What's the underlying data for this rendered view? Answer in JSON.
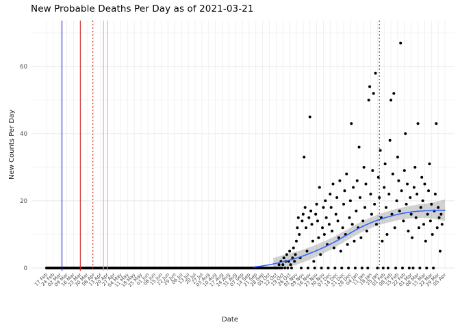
{
  "chart_data": {
    "type": "scatter",
    "title": "New Probable Deaths Per Day as of 2021-03-21",
    "xlabel": "Date",
    "ylabel": "New Counts Per Day",
    "ylim": [
      0,
      70
    ],
    "grid": true,
    "legend": "none",
    "colors": {
      "point": "#000000",
      "smooth_line": "#3366FF",
      "ribbon": "rgba(125,125,125,0.35)",
      "grid_major": "#e4e4e4",
      "grid_minor": "#f2f2f2",
      "axis_text": "#4d4d4d"
    },
    "y_major_ticks": [
      0,
      20,
      40,
      60
    ],
    "y_minor_ticks": [
      10,
      30,
      50,
      70
    ],
    "x_tick_interval_days": 7,
    "x_tick_labels": [
      "17 Feb",
      "24 Feb",
      "02 Mar",
      "09 Mar",
      "16 Mar",
      "23 Mar",
      "30 Mar",
      "06 Apr",
      "13 Apr",
      "20 Apr",
      "27 Apr",
      "04 May",
      "11 May",
      "18 May",
      "25 May",
      "01 Jun",
      "08 Jun",
      "15 Jun",
      "22 Jun",
      "29 Jun",
      "06 Jul",
      "13 Jul",
      "20 Jul",
      "27 Jul",
      "03 Aug",
      "10 Aug",
      "17 Aug",
      "24 Aug",
      "31 Aug",
      "07 Sep",
      "14 Sep",
      "21 Sep",
      "28 Sep",
      "05 Oct",
      "12 Oct",
      "19 Oct",
      "26 Oct",
      "02 Nov",
      "09 Nov",
      "16 Nov",
      "23 Nov",
      "30 Nov",
      "07 Dec",
      "14 Dec",
      "21 Dec",
      "28 Dec",
      "04 Jan",
      "11 Jan",
      "18 Jan",
      "25 Jan",
      "01 Feb",
      "08 Feb",
      "15 Feb",
      "22 Feb",
      "01 Mar",
      "08 Mar",
      "15 Mar",
      "22 Mar",
      "29 Mar",
      "05 Apr"
    ],
    "zero_run_days": [
      0,
      240
    ],
    "points": [
      [
        241,
        1
      ],
      [
        242,
        0
      ],
      [
        243,
        2
      ],
      [
        244,
        0
      ],
      [
        245,
        1
      ],
      [
        246,
        3
      ],
      [
        247,
        0
      ],
      [
        248,
        2
      ],
      [
        249,
        4
      ],
      [
        250,
        0
      ],
      [
        251,
        2
      ],
      [
        252,
        5
      ],
      [
        253,
        1
      ],
      [
        254,
        0
      ],
      [
        255,
        3
      ],
      [
        256,
        6
      ],
      [
        257,
        2
      ],
      [
        258,
        4
      ],
      [
        259,
        8
      ],
      [
        260,
        12
      ],
      [
        261,
        15
      ],
      [
        262,
        10
      ],
      [
        263,
        3
      ],
      [
        264,
        0
      ],
      [
        265,
        14
      ],
      [
        266,
        16
      ],
      [
        267,
        33
      ],
      [
        268,
        18
      ],
      [
        269,
        12
      ],
      [
        270,
        5
      ],
      [
        271,
        0
      ],
      [
        272,
        15
      ],
      [
        273,
        45
      ],
      [
        274,
        17
      ],
      [
        275,
        13
      ],
      [
        276,
        8
      ],
      [
        277,
        2
      ],
      [
        278,
        0
      ],
      [
        279,
        16
      ],
      [
        280,
        19
      ],
      [
        281,
        14
      ],
      [
        282,
        9
      ],
      [
        283,
        24
      ],
      [
        284,
        4
      ],
      [
        285,
        0
      ],
      [
        286,
        12
      ],
      [
        287,
        18
      ],
      [
        288,
        10
      ],
      [
        289,
        20
      ],
      [
        290,
        15
      ],
      [
        291,
        7
      ],
      [
        292,
        0
      ],
      [
        293,
        13
      ],
      [
        294,
        22
      ],
      [
        295,
        18
      ],
      [
        296,
        11
      ],
      [
        297,
        25
      ],
      [
        298,
        6
      ],
      [
        299,
        0
      ],
      [
        300,
        16
      ],
      [
        301,
        21
      ],
      [
        302,
        14
      ],
      [
        303,
        9
      ],
      [
        304,
        26
      ],
      [
        305,
        5
      ],
      [
        306,
        0
      ],
      [
        307,
        12
      ],
      [
        308,
        19
      ],
      [
        309,
        23
      ],
      [
        310,
        10
      ],
      [
        311,
        28
      ],
      [
        312,
        7
      ],
      [
        313,
        0
      ],
      [
        314,
        15
      ],
      [
        315,
        20
      ],
      [
        316,
        43
      ],
      [
        317,
        13
      ],
      [
        318,
        24
      ],
      [
        319,
        8
      ],
      [
        320,
        0
      ],
      [
        321,
        17
      ],
      [
        322,
        26
      ],
      [
        323,
        12
      ],
      [
        324,
        36
      ],
      [
        325,
        21
      ],
      [
        326,
        9
      ],
      [
        327,
        0
      ],
      [
        328,
        14
      ],
      [
        329,
        30
      ],
      [
        330,
        18
      ],
      [
        331,
        25
      ],
      [
        332,
        11
      ],
      [
        333,
        0
      ],
      [
        334,
        50
      ],
      [
        335,
        54
      ],
      [
        336,
        22
      ],
      [
        337,
        16
      ],
      [
        338,
        29
      ],
      [
        339,
        52
      ],
      [
        340,
        19
      ],
      [
        341,
        58
      ],
      [
        342,
        13
      ],
      [
        343,
        0
      ],
      [
        344,
        27
      ],
      [
        345,
        21
      ],
      [
        346,
        35
      ],
      [
        347,
        15
      ],
      [
        348,
        8
      ],
      [
        349,
        0
      ],
      [
        350,
        24
      ],
      [
        351,
        31
      ],
      [
        352,
        18
      ],
      [
        353,
        10
      ],
      [
        354,
        0
      ],
      [
        355,
        22
      ],
      [
        356,
        38
      ],
      [
        357,
        50
      ],
      [
        358,
        16
      ],
      [
        359,
        28
      ],
      [
        360,
        52
      ],
      [
        361,
        12
      ],
      [
        362,
        0
      ],
      [
        363,
        20
      ],
      [
        364,
        33
      ],
      [
        365,
        26
      ],
      [
        366,
        17
      ],
      [
        367,
        67
      ],
      [
        368,
        23
      ],
      [
        369,
        0
      ],
      [
        370,
        14
      ],
      [
        371,
        29
      ],
      [
        372,
        40
      ],
      [
        373,
        19
      ],
      [
        374,
        25
      ],
      [
        375,
        11
      ],
      [
        376,
        0
      ],
      [
        377,
        21
      ],
      [
        378,
        16
      ],
      [
        379,
        9
      ],
      [
        380,
        0
      ],
      [
        381,
        24
      ],
      [
        382,
        30
      ],
      [
        383,
        15
      ],
      [
        384,
        22
      ],
      [
        385,
        43
      ],
      [
        386,
        12
      ],
      [
        387,
        0
      ],
      [
        388,
        18
      ],
      [
        389,
        27
      ],
      [
        390,
        20
      ],
      [
        391,
        13
      ],
      [
        392,
        25
      ],
      [
        393,
        8
      ],
      [
        394,
        0
      ],
      [
        395,
        16
      ],
      [
        396,
        23
      ],
      [
        397,
        31
      ],
      [
        398,
        14
      ],
      [
        399,
        19
      ],
      [
        400,
        10
      ],
      [
        401,
        0
      ],
      [
        402,
        17
      ],
      [
        403,
        22
      ],
      [
        404,
        43
      ],
      [
        405,
        12
      ],
      [
        406,
        18
      ],
      [
        407,
        15
      ],
      [
        408,
        5
      ],
      [
        409,
        16
      ],
      [
        410,
        13
      ]
    ],
    "smooth_line_points": [
      [
        215,
        0.3
      ],
      [
        230,
        0.9
      ],
      [
        250,
        2.2
      ],
      [
        265,
        3.5
      ],
      [
        280,
        5.2
      ],
      [
        295,
        7.2
      ],
      [
        310,
        9.6
      ],
      [
        325,
        12.0
      ],
      [
        340,
        13.9
      ],
      [
        355,
        15.3
      ],
      [
        370,
        16.3
      ],
      [
        385,
        16.9
      ],
      [
        400,
        17.1
      ],
      [
        413,
        17.2
      ]
    ],
    "ribbon_points": [
      [
        235,
        -0.4,
        3.0
      ],
      [
        250,
        0.2,
        4.2
      ],
      [
        265,
        1.6,
        5.4
      ],
      [
        280,
        3.4,
        7.0
      ],
      [
        295,
        5.5,
        8.9
      ],
      [
        310,
        8.0,
        11.2
      ],
      [
        325,
        10.4,
        13.6
      ],
      [
        340,
        12.3,
        15.5
      ],
      [
        355,
        13.6,
        17.0
      ],
      [
        370,
        14.5,
        18.1
      ],
      [
        385,
        14.9,
        18.9
      ],
      [
        400,
        14.7,
        19.5
      ],
      [
        413,
        14.0,
        20.4
      ]
    ],
    "vlines": [
      {
        "day": 16,
        "color": "#1f1fcc",
        "style": "solid"
      },
      {
        "day": 35,
        "color": "#cc2222",
        "style": "solid"
      },
      {
        "day": 48,
        "color": "#cc2222",
        "style": "dotted"
      },
      {
        "day": 59,
        "color": "#f0a0a8",
        "style": "solid"
      },
      {
        "day": 63,
        "color": "#f0a0a8",
        "style": "solid"
      },
      {
        "day": 345,
        "color": "#444444",
        "style": "dotted"
      }
    ]
  }
}
